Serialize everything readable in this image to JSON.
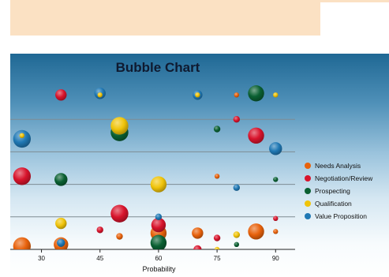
{
  "chart_data": {
    "type": "scatter",
    "title": "Bubble Chart",
    "xlabel": "Probability",
    "ylabel": "",
    "xlim": [
      22,
      95
    ],
    "ylim": [
      0,
      100
    ],
    "x_ticks": [
      30,
      45,
      60,
      75,
      90
    ],
    "grid": true,
    "legend_position": "right",
    "series": [
      {
        "name": "Needs Analysis",
        "color": "#e8620c",
        "points": [
          {
            "x": 80,
            "y": 95,
            "size": 2
          },
          {
            "x": 75,
            "y": 45,
            "size": 2
          },
          {
            "x": 90,
            "y": 11,
            "size": 2
          },
          {
            "x": 85,
            "y": 11,
            "size": 9
          },
          {
            "x": 70,
            "y": 10,
            "size": 6
          },
          {
            "x": 60,
            "y": 10,
            "size": 9
          },
          {
            "x": 50,
            "y": 8,
            "size": 3
          },
          {
            "x": 35,
            "y": 3,
            "size": 8
          },
          {
            "x": 25,
            "y": 2,
            "size": 10
          }
        ]
      },
      {
        "name": "Negotiation/Review",
        "color": "#d8142c",
        "points": [
          {
            "x": 35,
            "y": 95,
            "size": 6
          },
          {
            "x": 80,
            "y": 80,
            "size": 3
          },
          {
            "x": 85,
            "y": 70,
            "size": 9
          },
          {
            "x": 25,
            "y": 45,
            "size": 10
          },
          {
            "x": 50,
            "y": 22,
            "size": 10
          },
          {
            "x": 90,
            "y": 19,
            "size": 2
          },
          {
            "x": 60,
            "y": 15,
            "size": 8
          },
          {
            "x": 45,
            "y": 12,
            "size": 3
          },
          {
            "x": 75,
            "y": 7,
            "size": 3
          },
          {
            "x": 70,
            "y": 0,
            "size": 4
          }
        ]
      },
      {
        "name": "Prospecting",
        "color": "#0a6032",
        "points": [
          {
            "x": 85,
            "y": 96,
            "size": 9
          },
          {
            "x": 75,
            "y": 74,
            "size": 3
          },
          {
            "x": 50,
            "y": 72,
            "size": 10
          },
          {
            "x": 35,
            "y": 43,
            "size": 7
          },
          {
            "x": 90,
            "y": 43,
            "size": 2
          },
          {
            "x": 80,
            "y": 3,
            "size": 2
          },
          {
            "x": 60,
            "y": 4,
            "size": 9
          }
        ]
      },
      {
        "name": "Qualification",
        "color": "#f0c40a",
        "points": [
          {
            "x": 45,
            "y": 95,
            "size": 2
          },
          {
            "x": 90,
            "y": 95,
            "size": 2
          },
          {
            "x": 70,
            "y": 95,
            "size": 2
          },
          {
            "x": 50,
            "y": 76,
            "size": 10
          },
          {
            "x": 25,
            "y": 70,
            "size": 2
          },
          {
            "x": 60,
            "y": 40,
            "size": 9
          },
          {
            "x": 35,
            "y": 16,
            "size": 6
          },
          {
            "x": 80,
            "y": 9,
            "size": 3
          },
          {
            "x": 75,
            "y": 0,
            "size": 2
          }
        ]
      },
      {
        "name": "Value Proposition",
        "color": "#1f78b4",
        "points": [
          {
            "x": 45,
            "y": 96,
            "size": 6
          },
          {
            "x": 70,
            "y": 95,
            "size": 5
          },
          {
            "x": 25,
            "y": 68,
            "size": 10
          },
          {
            "x": 90,
            "y": 62,
            "size": 7
          },
          {
            "x": 80,
            "y": 38,
            "size": 3
          },
          {
            "x": 60,
            "y": 20,
            "size": 3
          },
          {
            "x": 35,
            "y": 4,
            "size": 4
          }
        ]
      }
    ]
  }
}
